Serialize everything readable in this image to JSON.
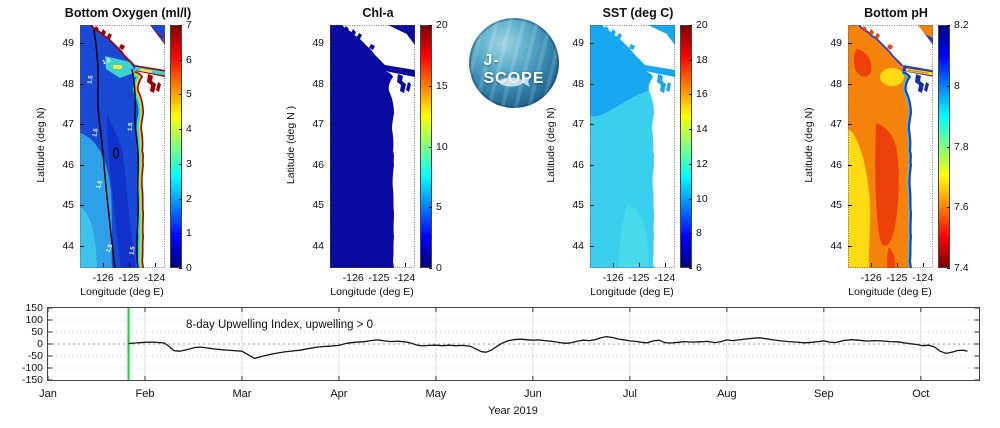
{
  "figure": {
    "background": "#ffffff"
  },
  "logo": {
    "text": "J-SCOPE"
  },
  "panels": [
    {
      "title": "Bottom Oxygen (ml/l)",
      "ylabel": "Latitude (deg N)",
      "xlabel": "Longitude (deg E)",
      "lat_ticks": [
        49,
        48,
        47,
        46,
        45,
        44
      ],
      "lon_ticks": [
        -126,
        -125,
        -124
      ],
      "lat_range": [
        43.45,
        49.45
      ],
      "lon_range": [
        -126.9,
        -123.6
      ],
      "contour_label": "1.5",
      "colorbar": {
        "min": 0,
        "max": 7,
        "ticks": [
          7,
          6,
          5,
          4,
          3,
          2,
          1,
          0
        ],
        "reversed": false
      },
      "palette": {
        "base": "#1a49d6",
        "sw": "#2f9fe8",
        "corner": "#3ec4ec",
        "tongue": "#1133cc",
        "band1": "#2adfd4",
        "band2": "#c8ef3a",
        "band3": "#ff9400",
        "band4": "#9c0000",
        "entrance": "#3cd2cf",
        "entrance2": "#ffe23c",
        "channel": "#3cd2cf",
        "channel2": "#ffe23c",
        "channel_edge": "#9c0000",
        "island_coast": "#9c0000",
        "strip": "#2255e0",
        "strip_edge": "#9c0000",
        "sound": "#9c0000",
        "inlets": "#9c0000",
        "land": "#ffffff",
        "contour": "#000000",
        "contour_text": "#ffffff",
        "frame": "#555555"
      }
    },
    {
      "title": "Chl-a",
      "ylabel": "Latitude (deg N )",
      "xlabel": "Longitude (deg E)",
      "lat_ticks": [
        49,
        48,
        47,
        46,
        45,
        44
      ],
      "lon_ticks": [
        -126,
        -125,
        -124
      ],
      "lat_range": [
        43.45,
        49.45
      ],
      "lon_range": [
        -126.9,
        -123.6
      ],
      "colorbar": {
        "min": 0,
        "max": 20,
        "ticks": [
          20,
          15,
          10,
          5,
          0
        ],
        "reversed": false
      },
      "palette": {
        "base": "#0a0aa0",
        "strip": "#0a0aa0",
        "sound": "#0a0aa0",
        "inlets": "#0a0aa0",
        "land": "#ffffff",
        "frame": "#555555"
      }
    },
    {
      "title": "SST (deg C)",
      "ylabel": "Latitude (deg N)",
      "xlabel": "Longitude (deg E)",
      "lat_ticks": [
        49,
        48,
        47,
        46,
        45,
        44
      ],
      "lon_ticks": [
        -126,
        -125,
        -124
      ],
      "lat_range": [
        43.45,
        49.45
      ],
      "lon_range": [
        -126.9,
        -123.6
      ],
      "colorbar": {
        "min": 6,
        "max": 20,
        "ticks": [
          20,
          18,
          16,
          14,
          12,
          10,
          8,
          6
        ],
        "reversed": false
      },
      "palette": {
        "base": "#3bcfee",
        "north": "#16a7f0",
        "south": "#49d9ec",
        "strip": "#16a7f0",
        "sound": "#16a7f0",
        "inlets": "#16a7f0",
        "land": "#ffffff",
        "frame": "#555555"
      }
    },
    {
      "title": "Bottom pH",
      "ylabel": "Latitude (deg N)",
      "xlabel": "Longitude (deg E)",
      "lat_ticks": [
        49,
        48,
        47,
        46,
        45,
        44
      ],
      "lon_ticks": [
        -126,
        -125,
        -124
      ],
      "lat_range": [
        43.45,
        49.45
      ],
      "lon_range": [
        -126.9,
        -123.6
      ],
      "colorbar": {
        "min": 7.4,
        "max": 8.2,
        "ticks": [
          "8.2",
          "8",
          "7.8",
          "7.6",
          "7.4"
        ],
        "reversed": true
      },
      "palette": {
        "base": "#f5820a",
        "yellow": "#ffd912",
        "red": "#ee4109",
        "band1": "#30cfe0",
        "band2": "#1d3fd4",
        "channel": "#1d3fd4",
        "channel2": "#ffd912",
        "channel3": "#f5820a",
        "island_coast": "#1d3fd4",
        "strip": "#1d3fd4",
        "sound": "#16309f",
        "inlets": "#ee4109",
        "land": "#ffffff",
        "frame": "#555555"
      }
    }
  ],
  "timeseries": {
    "annotation": "8-day Upwelling Index, upwelling > 0",
    "xlabel": "Year 2019",
    "x_ticks": [
      "Jan",
      "Feb",
      "Mar",
      "Apr",
      "May",
      "Jun",
      "Jul",
      "Aug",
      "Sep",
      "Oct"
    ],
    "y_ticks": [
      150,
      100,
      50,
      0,
      -50,
      -100,
      -150
    ],
    "y_range": [
      -150,
      150
    ],
    "x_range_months": [
      0,
      9.6
    ],
    "green_line_month": 0.83,
    "line_color": "#161616",
    "vline_color": "#00dd22",
    "grid_color": "#dcdce8",
    "dot_grid_color": "#cfcfcf",
    "zero_line_color": "#9a9a9a"
  },
  "chart_data": [
    {
      "type": "heatmap",
      "title": "Bottom Oxygen (ml/l)",
      "xlabel": "Longitude (deg E)",
      "ylabel": "Latitude (deg N)",
      "x_ticks": [
        -126,
        -125,
        -124
      ],
      "y_ticks": [
        49,
        48,
        47,
        46,
        45,
        44
      ],
      "x_range": [
        -126.9,
        -123.6
      ],
      "y_range": [
        43.45,
        49.45
      ],
      "colorbar": {
        "min": 0,
        "max": 7,
        "ticks": [
          7,
          6,
          5,
          4,
          3,
          2,
          1,
          0
        ]
      },
      "contour_level": 1.5,
      "pattern": "low oxygen (0-2 ml/l, blue) offshore with 1.5 contour lines labeled in white; high oxygen (6-7, dark red) narrow band along coast and shelf; cyan-green transition nearshore; land white"
    },
    {
      "type": "heatmap",
      "title": "Chl-a",
      "xlabel": "Longitude (deg E)",
      "ylabel": "Latitude (deg N )",
      "x_ticks": [
        -126,
        -125,
        -124
      ],
      "y_ticks": [
        49,
        48,
        47,
        46,
        45,
        44
      ],
      "x_range": [
        -126.9,
        -123.6
      ],
      "y_range": [
        43.45,
        49.45
      ],
      "colorbar": {
        "min": 0,
        "max": 20,
        "ticks": [
          20,
          15,
          10,
          5,
          0
        ]
      },
      "pattern": "near-uniform low chlorophyll (~0, dark navy) over entire ocean area; land white"
    },
    {
      "type": "heatmap",
      "title": "SST (deg C)",
      "xlabel": "Longitude (deg E)",
      "ylabel": "Latitude (deg N)",
      "x_ticks": [
        -126,
        -125,
        -124
      ],
      "y_ticks": [
        49,
        48,
        47,
        46,
        45,
        44
      ],
      "x_range": [
        -126.9,
        -123.6
      ],
      "y_range": [
        43.45,
        49.45
      ],
      "colorbar": {
        "min": 6,
        "max": 20,
        "ticks": [
          20,
          18,
          16,
          14,
          12,
          10,
          8,
          6
        ]
      },
      "pattern": "cool SST ~9-11 C: blue (~9) in northwest and strait, cyan (~10-11) over central and southern domain; land white"
    },
    {
      "type": "heatmap",
      "title": "Bottom pH",
      "xlabel": "Longitude (deg E)",
      "ylabel": "Latitude (deg N)",
      "x_ticks": [
        -126,
        -125,
        -124
      ],
      "y_ticks": [
        49,
        48,
        47,
        46,
        45,
        44
      ],
      "x_range": [
        -126.9,
        -123.6
      ],
      "y_range": [
        43.45,
        49.45
      ],
      "colorbar": {
        "min": 7.4,
        "max": 8.2,
        "ticks": [
          8.2,
          8.0,
          7.8,
          7.6,
          7.4
        ],
        "reversed_colormap": true
      },
      "pattern": "low pH offshore: orange (~7.65) dominant, red (~7.5) mid-shelf blob, yellow (~7.7) southwest; high pH blue band (~8.0-8.2) hugging the coast with cyan transition; land white"
    },
    {
      "type": "line",
      "title": "8-day Upwelling Index, upwelling > 0",
      "xlabel": "Year 2019",
      "x_tick_labels": [
        "Jan",
        "Feb",
        "Mar",
        "Apr",
        "May",
        "Jun",
        "Jul",
        "Aug",
        "Sep",
        "Oct"
      ],
      "ylim": [
        -150,
        150
      ],
      "y_ticks": [
        150,
        100,
        50,
        0,
        -50,
        -100,
        -150
      ],
      "x_axis_note": "x in months, 0 = Jan 1 2019; axis spans 0 to 9.6",
      "green_vline_x": 0.83,
      "zero_reference_line": 0,
      "series": [
        {
          "name": "upwelling index",
          "points": [
            [
              0.83,
              2
            ],
            [
              0.9,
              4
            ],
            [
              1.0,
              7
            ],
            [
              1.08,
              8
            ],
            [
              1.15,
              6
            ],
            [
              1.2,
              4
            ],
            [
              1.24,
              -8
            ],
            [
              1.3,
              -28
            ],
            [
              1.36,
              -30
            ],
            [
              1.45,
              -22
            ],
            [
              1.52,
              -14
            ],
            [
              1.58,
              -13
            ],
            [
              1.65,
              -17
            ],
            [
              1.72,
              -21
            ],
            [
              1.8,
              -24
            ],
            [
              1.9,
              -27
            ],
            [
              2.0,
              -30
            ],
            [
              2.06,
              -44
            ],
            [
              2.13,
              -60
            ],
            [
              2.2,
              -52
            ],
            [
              2.28,
              -44
            ],
            [
              2.36,
              -38
            ],
            [
              2.44,
              -33
            ],
            [
              2.52,
              -29
            ],
            [
              2.6,
              -26
            ],
            [
              2.7,
              -18
            ],
            [
              2.8,
              -12
            ],
            [
              2.9,
              -9
            ],
            [
              3.0,
              -6
            ],
            [
              3.08,
              3
            ],
            [
              3.16,
              7
            ],
            [
              3.25,
              9
            ],
            [
              3.33,
              14
            ],
            [
              3.4,
              17
            ],
            [
              3.47,
              13
            ],
            [
              3.54,
              10
            ],
            [
              3.6,
              12
            ],
            [
              3.68,
              9
            ],
            [
              3.74,
              4
            ],
            [
              3.8,
              -4
            ],
            [
              3.86,
              -8
            ],
            [
              3.93,
              -6
            ],
            [
              4.0,
              -5
            ],
            [
              4.07,
              -7
            ],
            [
              4.13,
              -5
            ],
            [
              4.2,
              -7
            ],
            [
              4.28,
              -6
            ],
            [
              4.36,
              -10
            ],
            [
              4.42,
              -22
            ],
            [
              4.47,
              -32
            ],
            [
              4.52,
              -34
            ],
            [
              4.57,
              -26
            ],
            [
              4.62,
              -12
            ],
            [
              4.68,
              3
            ],
            [
              4.74,
              13
            ],
            [
              4.8,
              18
            ],
            [
              4.87,
              20
            ],
            [
              4.93,
              18
            ],
            [
              5.0,
              16
            ],
            [
              5.06,
              17
            ],
            [
              5.12,
              14
            ],
            [
              5.2,
              11
            ],
            [
              5.28,
              6
            ],
            [
              5.34,
              3
            ],
            [
              5.4,
              6
            ],
            [
              5.46,
              12
            ],
            [
              5.52,
              16
            ],
            [
              5.58,
              14
            ],
            [
              5.64,
              18
            ],
            [
              5.7,
              26
            ],
            [
              5.76,
              31
            ],
            [
              5.82,
              27
            ],
            [
              5.88,
              21
            ],
            [
              5.94,
              17
            ],
            [
              6.0,
              13
            ],
            [
              6.06,
              11
            ],
            [
              6.12,
              7
            ],
            [
              6.18,
              5
            ],
            [
              6.24,
              13
            ],
            [
              6.3,
              16
            ],
            [
              6.36,
              6
            ],
            [
              6.42,
              4
            ],
            [
              6.5,
              7
            ],
            [
              6.56,
              10
            ],
            [
              6.64,
              8
            ],
            [
              6.72,
              9
            ],
            [
              6.8,
              11
            ],
            [
              6.88,
              6
            ],
            [
              6.94,
              10
            ],
            [
              7.0,
              17
            ],
            [
              7.06,
              14
            ],
            [
              7.12,
              17
            ],
            [
              7.2,
              21
            ],
            [
              7.28,
              24
            ],
            [
              7.34,
              26
            ],
            [
              7.4,
              22
            ],
            [
              7.48,
              17
            ],
            [
              7.56,
              13
            ],
            [
              7.64,
              10
            ],
            [
              7.72,
              8
            ],
            [
              7.8,
              5
            ],
            [
              7.88,
              7
            ],
            [
              7.94,
              10
            ],
            [
              8.0,
              13
            ],
            [
              8.06,
              8
            ],
            [
              8.12,
              6
            ],
            [
              8.2,
              14
            ],
            [
              8.28,
              18
            ],
            [
              8.36,
              16
            ],
            [
              8.44,
              12
            ],
            [
              8.52,
              14
            ],
            [
              8.6,
              13
            ],
            [
              8.68,
              10
            ],
            [
              8.76,
              9
            ],
            [
              8.84,
              4
            ],
            [
              8.9,
              1
            ],
            [
              8.96,
              -2
            ],
            [
              9.02,
              -7
            ],
            [
              9.08,
              -5
            ],
            [
              9.14,
              -12
            ],
            [
              9.2,
              -30
            ],
            [
              9.26,
              -39
            ],
            [
              9.32,
              -34
            ],
            [
              9.38,
              -27
            ],
            [
              9.44,
              -26
            ],
            [
              9.48,
              -30
            ]
          ]
        }
      ]
    }
  ]
}
